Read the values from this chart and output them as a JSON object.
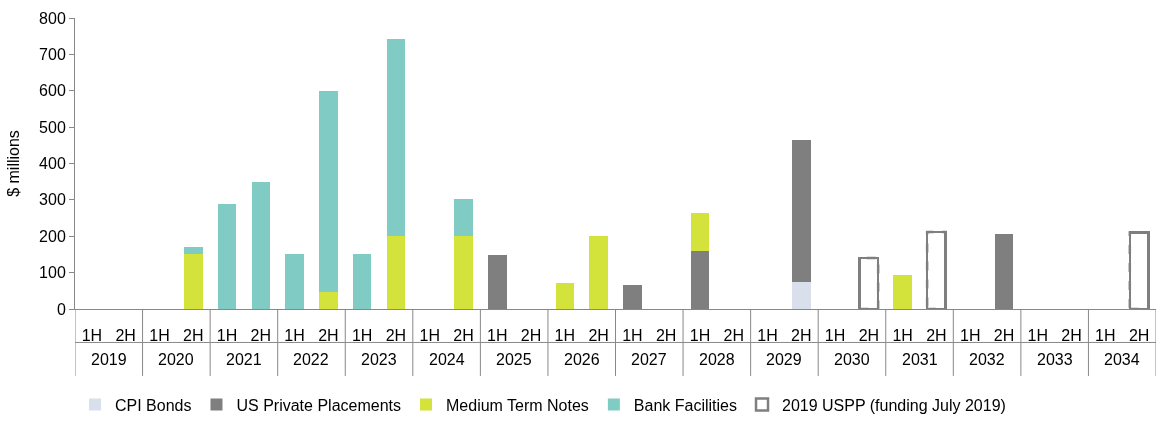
{
  "chart_data": {
    "type": "bar",
    "stacked": true,
    "ylabel": "$ millions",
    "ylim": [
      0,
      800
    ],
    "yticks": [
      0,
      100,
      200,
      300,
      400,
      500,
      600,
      700,
      800
    ],
    "legend": "bottom",
    "categories": [
      "1H",
      "2H",
      "1H",
      "2H",
      "1H",
      "2H",
      "1H",
      "2H",
      "1H",
      "2H",
      "1H",
      "2H",
      "1H",
      "2H",
      "1H",
      "2H",
      "1H",
      "2H",
      "1H",
      "2H",
      "1H",
      "2H",
      "1H",
      "2H",
      "1H",
      "2H",
      "1H",
      "2H",
      "1H",
      "2H",
      "1H",
      "2H"
    ],
    "annotations": [
      "2019",
      "2020",
      "2021",
      "2022",
      "2023",
      "2024",
      "2025",
      "2026",
      "2027",
      "2028",
      "2029",
      "2030",
      "2031",
      "2032",
      "2033",
      "2034"
    ],
    "series": [
      {
        "name": "CPI Bonds",
        "color": "#d9dfeb",
        "values": [
          null,
          null,
          null,
          null,
          null,
          null,
          null,
          null,
          null,
          null,
          null,
          null,
          null,
          null,
          null,
          null,
          null,
          null,
          null,
          null,
          null,
          73,
          null,
          null,
          null,
          null,
          null,
          null,
          null,
          null,
          null,
          null
        ]
      },
      {
        "name": "US Private Placements",
        "color": "#7f7f7f",
        "values": [
          null,
          null,
          null,
          null,
          null,
          null,
          null,
          null,
          null,
          null,
          null,
          null,
          148,
          null,
          null,
          null,
          67,
          null,
          160,
          null,
          null,
          392,
          null,
          null,
          null,
          null,
          null,
          207,
          null,
          null,
          null,
          null
        ]
      },
      {
        "name": "Medium Term Notes",
        "color": "#d4e23c",
        "values": [
          null,
          null,
          null,
          150,
          null,
          null,
          null,
          48,
          null,
          200,
          null,
          200,
          null,
          null,
          72,
          202,
          null,
          null,
          103,
          null,
          null,
          null,
          null,
          null,
          93,
          null,
          null,
          null,
          null,
          null,
          null,
          null
        ]
      },
      {
        "name": "Bank Facilities",
        "color": "#80cbc4",
        "values": [
          null,
          null,
          null,
          20,
          290,
          350,
          152,
          552,
          152,
          542,
          null,
          102,
          null,
          null,
          null,
          null,
          null,
          null,
          null,
          null,
          null,
          null,
          null,
          null,
          null,
          null,
          null,
          null,
          null,
          null,
          null,
          null
        ]
      },
      {
        "name": "2019 USPP (funding July 2019)",
        "color": "#7f7f7f",
        "line_style": "dashed",
        "values": [
          null,
          null,
          null,
          null,
          null,
          null,
          null,
          null,
          null,
          null,
          null,
          null,
          null,
          null,
          null,
          null,
          null,
          null,
          null,
          null,
          null,
          null,
          null,
          140,
          null,
          212,
          null,
          null,
          null,
          null,
          null,
          210
        ]
      }
    ]
  }
}
